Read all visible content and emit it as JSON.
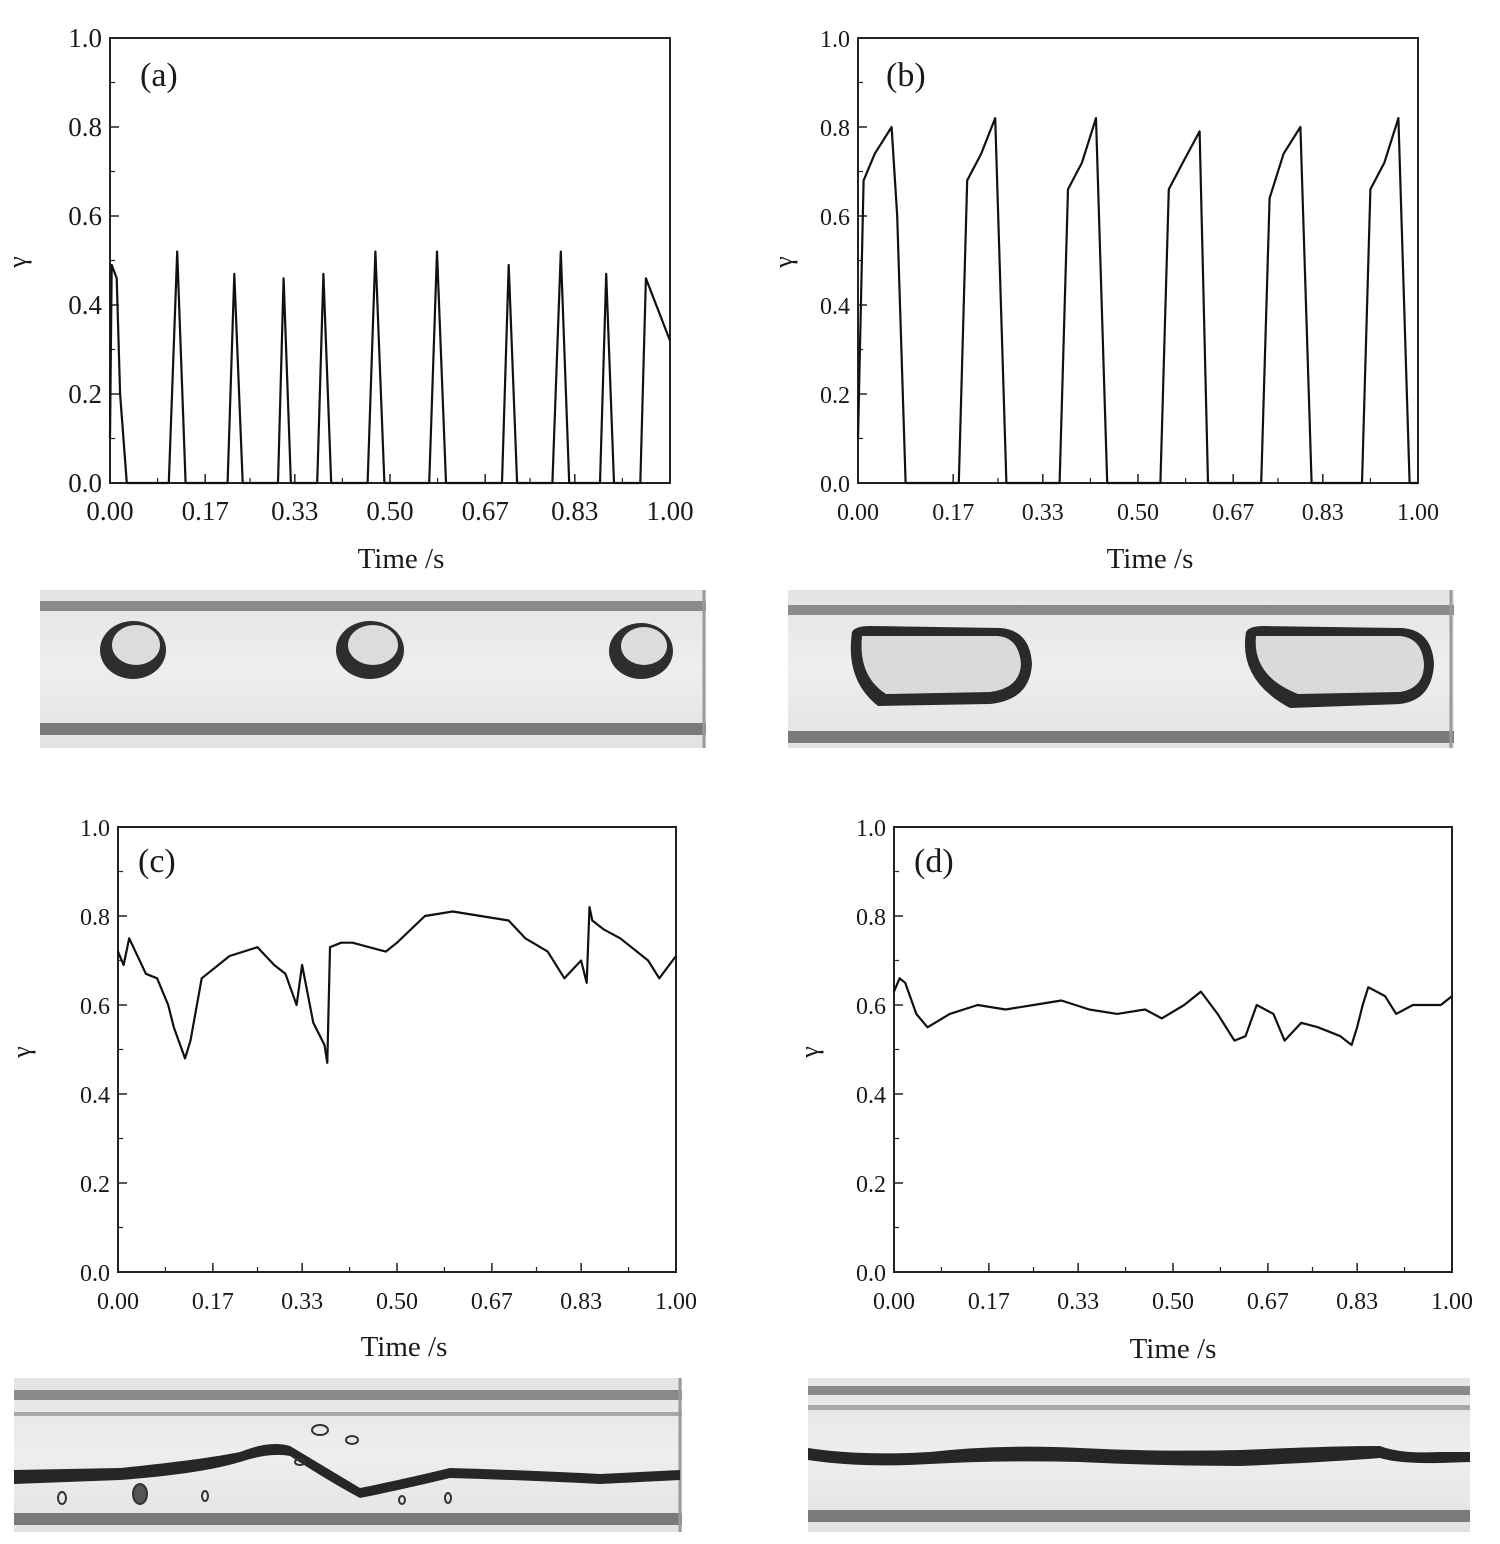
{
  "chart_data": [
    {
      "type": "line",
      "panel_label": "(a)",
      "xlabel": "Time /s",
      "ylabel": "γ",
      "xlim": [
        0,
        1
      ],
      "ylim": [
        0,
        1
      ],
      "x_ticks": [
        "0.00",
        "0.17",
        "0.33",
        "0.50",
        "0.67",
        "0.83",
        "1.00"
      ],
      "y_ticks": [
        "0.0",
        "0.2",
        "0.4",
        "0.6",
        "0.8",
        "1.0"
      ],
      "series": [
        {
          "x": [
            0.0,
            0.003,
            0.012,
            0.018,
            0.03,
            0.105,
            0.12,
            0.135,
            0.21,
            0.222,
            0.237,
            0.3,
            0.31,
            0.323,
            0.37,
            0.381,
            0.395,
            0.46,
            0.474,
            0.49,
            0.57,
            0.584,
            0.6,
            0.7,
            0.712,
            0.727,
            0.79,
            0.805,
            0.82,
            0.875,
            0.886,
            0.9,
            0.947,
            0.957,
            1.0
          ],
          "y": [
            0.1,
            0.49,
            0.46,
            0.2,
            0.0,
            0.0,
            0.52,
            0.0,
            0.0,
            0.47,
            0.0,
            0.0,
            0.46,
            0.0,
            0.0,
            0.47,
            0.0,
            0.0,
            0.52,
            0.0,
            0.0,
            0.52,
            0.0,
            0.0,
            0.49,
            0.0,
            0.0,
            0.52,
            0.0,
            0.0,
            0.47,
            0.0,
            0.0,
            0.46,
            0.32
          ]
        }
      ],
      "photo": "bubbles"
    },
    {
      "type": "line",
      "panel_label": "(b)",
      "xlabel": "Time /s",
      "ylabel": "γ",
      "xlim": [
        0,
        1
      ],
      "ylim": [
        0,
        1
      ],
      "x_ticks": [
        "0.00",
        "0.17",
        "0.33",
        "0.50",
        "0.67",
        "0.83",
        "1.00"
      ],
      "y_ticks": [
        "0.0",
        "0.2",
        "0.4",
        "0.6",
        "0.8",
        "1.0"
      ],
      "series": [
        {
          "x": [
            0.0,
            0.01,
            0.03,
            0.06,
            0.07,
            0.085,
            0.18,
            0.195,
            0.22,
            0.245,
            0.265,
            0.36,
            0.375,
            0.4,
            0.425,
            0.445,
            0.54,
            0.555,
            0.58,
            0.61,
            0.625,
            0.72,
            0.735,
            0.76,
            0.79,
            0.81,
            0.9,
            0.915,
            0.94,
            0.965,
            0.985,
            1.0
          ],
          "y": [
            0.1,
            0.68,
            0.74,
            0.8,
            0.6,
            0.0,
            0.0,
            0.68,
            0.74,
            0.82,
            0.0,
            0.0,
            0.66,
            0.72,
            0.82,
            0.0,
            0.0,
            0.66,
            0.72,
            0.79,
            0.0,
            0.0,
            0.64,
            0.74,
            0.8,
            0.0,
            0.0,
            0.66,
            0.72,
            0.82,
            0.0,
            0.0
          ]
        }
      ],
      "photo": "slugs"
    },
    {
      "type": "line",
      "panel_label": "(c)",
      "xlabel": "Time /s",
      "ylabel": "γ",
      "xlim": [
        0,
        1
      ],
      "ylim": [
        0,
        1
      ],
      "x_ticks": [
        "0.00",
        "0.17",
        "0.33",
        "0.50",
        "0.67",
        "0.83",
        "1.00"
      ],
      "y_ticks": [
        "0.0",
        "0.2",
        "0.4",
        "0.6",
        "0.8",
        "1.0"
      ],
      "series": [
        {
          "x": [
            0.0,
            0.01,
            0.02,
            0.05,
            0.07,
            0.09,
            0.1,
            0.12,
            0.13,
            0.15,
            0.2,
            0.25,
            0.28,
            0.3,
            0.32,
            0.33,
            0.35,
            0.37,
            0.375,
            0.38,
            0.4,
            0.42,
            0.48,
            0.5,
            0.55,
            0.6,
            0.65,
            0.7,
            0.73,
            0.77,
            0.8,
            0.83,
            0.84,
            0.845,
            0.85,
            0.87,
            0.9,
            0.95,
            0.97,
            1.0
          ],
          "y": [
            0.72,
            0.69,
            0.75,
            0.67,
            0.66,
            0.6,
            0.55,
            0.48,
            0.52,
            0.66,
            0.71,
            0.73,
            0.69,
            0.67,
            0.6,
            0.69,
            0.56,
            0.51,
            0.47,
            0.73,
            0.74,
            0.74,
            0.72,
            0.74,
            0.8,
            0.81,
            0.8,
            0.79,
            0.75,
            0.72,
            0.66,
            0.7,
            0.65,
            0.82,
            0.79,
            0.77,
            0.75,
            0.7,
            0.66,
            0.71
          ]
        }
      ],
      "photo": "churn"
    },
    {
      "type": "line",
      "panel_label": "(d)",
      "xlabel": "Time /s",
      "ylabel": "γ",
      "xlim": [
        0,
        1
      ],
      "ylim": [
        0,
        1
      ],
      "x_ticks": [
        "0.00",
        "0.17",
        "0.33",
        "0.50",
        "0.67",
        "0.83",
        "1.00"
      ],
      "y_ticks": [
        "0.0",
        "0.2",
        "0.4",
        "0.6",
        "0.8",
        "1.0"
      ],
      "series": [
        {
          "x": [
            0.0,
            0.01,
            0.02,
            0.04,
            0.06,
            0.1,
            0.15,
            0.2,
            0.25,
            0.3,
            0.35,
            0.4,
            0.45,
            0.48,
            0.52,
            0.55,
            0.58,
            0.61,
            0.63,
            0.65,
            0.68,
            0.7,
            0.73,
            0.76,
            0.8,
            0.82,
            0.83,
            0.84,
            0.85,
            0.88,
            0.9,
            0.93,
            0.96,
            0.98,
            1.0
          ],
          "y": [
            0.63,
            0.66,
            0.65,
            0.58,
            0.55,
            0.58,
            0.6,
            0.59,
            0.6,
            0.61,
            0.59,
            0.58,
            0.59,
            0.57,
            0.6,
            0.63,
            0.58,
            0.52,
            0.53,
            0.6,
            0.58,
            0.52,
            0.56,
            0.55,
            0.53,
            0.51,
            0.55,
            0.6,
            0.64,
            0.62,
            0.58,
            0.6,
            0.6,
            0.6,
            0.62
          ]
        }
      ],
      "photo": "annular"
    }
  ]
}
